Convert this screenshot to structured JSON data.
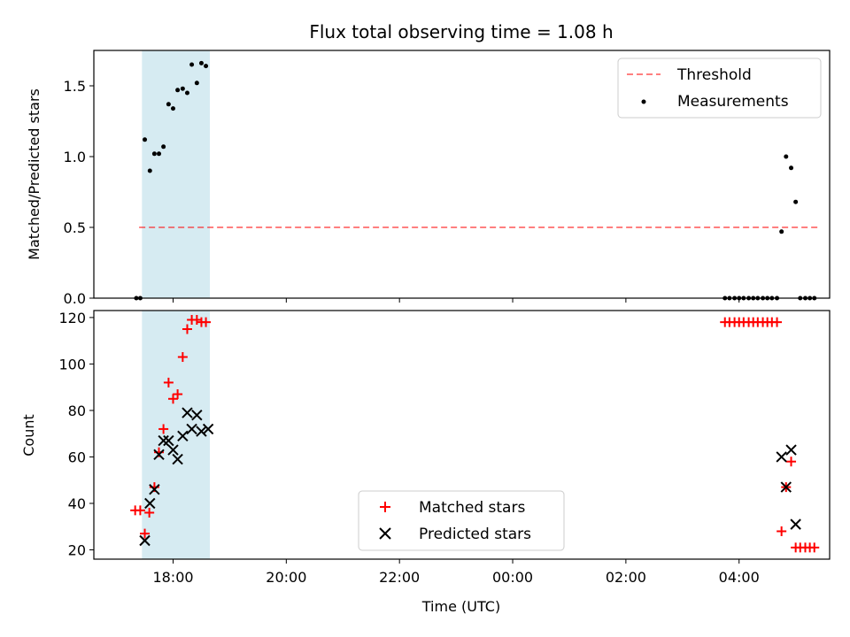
{
  "chart_data": {
    "type": "scatter",
    "title": "Flux total observing time = 1.08 h",
    "xlabel": "Time (UTC)",
    "x_axis_type": "time",
    "x_range_hours": [
      16.6,
      29.6
    ],
    "x_ticks": [
      {
        "h": 18,
        "label": "18:00"
      },
      {
        "h": 20,
        "label": "20:00"
      },
      {
        "h": 22,
        "label": "22:00"
      },
      {
        "h": 24,
        "label": "00:00"
      },
      {
        "h": 26,
        "label": "02:00"
      },
      {
        "h": 28,
        "label": "04:00"
      }
    ],
    "shaded_interval_hours": [
      17.45,
      18.65
    ],
    "shade_color": "#add8e6",
    "top_panel": {
      "ylabel": "Matched/Predicted stars",
      "ylim": [
        0,
        1.75
      ],
      "y_ticks": [
        {
          "v": 0.0,
          "label": "0.0"
        },
        {
          "v": 0.5,
          "label": "0.5"
        },
        {
          "v": 1.0,
          "label": "1.0"
        },
        {
          "v": 1.5,
          "label": "1.5"
        }
      ],
      "threshold": {
        "name": "Threshold",
        "value": 0.5,
        "x_range_hours": [
          17.4,
          29.4
        ],
        "color": "#ff0000"
      },
      "measurements": {
        "name": "Measurements",
        "color": "#000000",
        "points": [
          [
            17.35,
            0.0
          ],
          [
            17.42,
            0.0
          ],
          [
            17.5,
            1.12
          ],
          [
            17.59,
            0.9
          ],
          [
            17.67,
            1.02
          ],
          [
            17.75,
            1.02
          ],
          [
            17.83,
            1.07
          ],
          [
            17.92,
            1.37
          ],
          [
            18.0,
            1.34
          ],
          [
            18.08,
            1.47
          ],
          [
            18.17,
            1.48
          ],
          [
            18.25,
            1.45
          ],
          [
            18.33,
            1.65
          ],
          [
            18.42,
            1.52
          ],
          [
            18.5,
            1.66
          ],
          [
            18.58,
            1.64
          ],
          [
            27.75,
            0.0
          ],
          [
            27.83,
            0.0
          ],
          [
            27.92,
            0.0
          ],
          [
            28.0,
            0.0
          ],
          [
            28.08,
            0.0
          ],
          [
            28.17,
            0.0
          ],
          [
            28.25,
            0.0
          ],
          [
            28.33,
            0.0
          ],
          [
            28.42,
            0.0
          ],
          [
            28.5,
            0.0
          ],
          [
            28.58,
            0.0
          ],
          [
            28.67,
            0.0
          ],
          [
            28.75,
            0.47
          ],
          [
            28.83,
            1.0
          ],
          [
            28.92,
            0.92
          ],
          [
            29.0,
            0.68
          ],
          [
            29.08,
            0.0
          ],
          [
            29.17,
            0.0
          ],
          [
            29.25,
            0.0
          ],
          [
            29.33,
            0.0
          ]
        ]
      }
    },
    "bottom_panel": {
      "ylabel": "Count",
      "ylim": [
        16,
        123
      ],
      "y_ticks": [
        {
          "v": 20,
          "label": "20"
        },
        {
          "v": 40,
          "label": "40"
        },
        {
          "v": 60,
          "label": "60"
        },
        {
          "v": 80,
          "label": "80"
        },
        {
          "v": 100,
          "label": "100"
        },
        {
          "v": 120,
          "label": "120"
        }
      ],
      "series": [
        {
          "name": "Matched stars",
          "marker": "plus",
          "color": "#ff0000",
          "points": [
            [
              17.33,
              37
            ],
            [
              17.42,
              37
            ],
            [
              17.5,
              27
            ],
            [
              17.58,
              36
            ],
            [
              17.67,
              47
            ],
            [
              17.75,
              62
            ],
            [
              17.83,
              72
            ],
            [
              17.92,
              92
            ],
            [
              18.0,
              85
            ],
            [
              18.08,
              87
            ],
            [
              18.17,
              103
            ],
            [
              18.25,
              115
            ],
            [
              18.33,
              119
            ],
            [
              18.42,
              119
            ],
            [
              18.5,
              118
            ],
            [
              18.58,
              118
            ],
            [
              27.75,
              118
            ],
            [
              27.83,
              118
            ],
            [
              27.92,
              118
            ],
            [
              28.0,
              118
            ],
            [
              28.08,
              118
            ],
            [
              28.17,
              118
            ],
            [
              28.25,
              118
            ],
            [
              28.33,
              118
            ],
            [
              28.42,
              118
            ],
            [
              28.5,
              118
            ],
            [
              28.58,
              118
            ],
            [
              28.67,
              118
            ],
            [
              28.75,
              28
            ],
            [
              28.83,
              47
            ],
            [
              28.92,
              58
            ],
            [
              29.0,
              21
            ],
            [
              29.08,
              21
            ],
            [
              29.17,
              21
            ],
            [
              29.25,
              21
            ],
            [
              29.33,
              21
            ]
          ]
        },
        {
          "name": "Predicted stars",
          "marker": "x",
          "color": "#000000",
          "points": [
            [
              17.5,
              24
            ],
            [
              17.59,
              40
            ],
            [
              17.67,
              46
            ],
            [
              17.75,
              61
            ],
            [
              17.83,
              67
            ],
            [
              17.92,
              67
            ],
            [
              18.0,
              63
            ],
            [
              18.08,
              59
            ],
            [
              18.17,
              69
            ],
            [
              18.25,
              79
            ],
            [
              18.33,
              72
            ],
            [
              18.42,
              78
            ],
            [
              18.5,
              71
            ],
            [
              18.62,
              72
            ],
            [
              28.75,
              60
            ],
            [
              28.83,
              47
            ],
            [
              28.92,
              63
            ],
            [
              29.0,
              31
            ]
          ]
        }
      ]
    },
    "legends": {
      "top": "upper right",
      "bottom": "lower center"
    }
  }
}
